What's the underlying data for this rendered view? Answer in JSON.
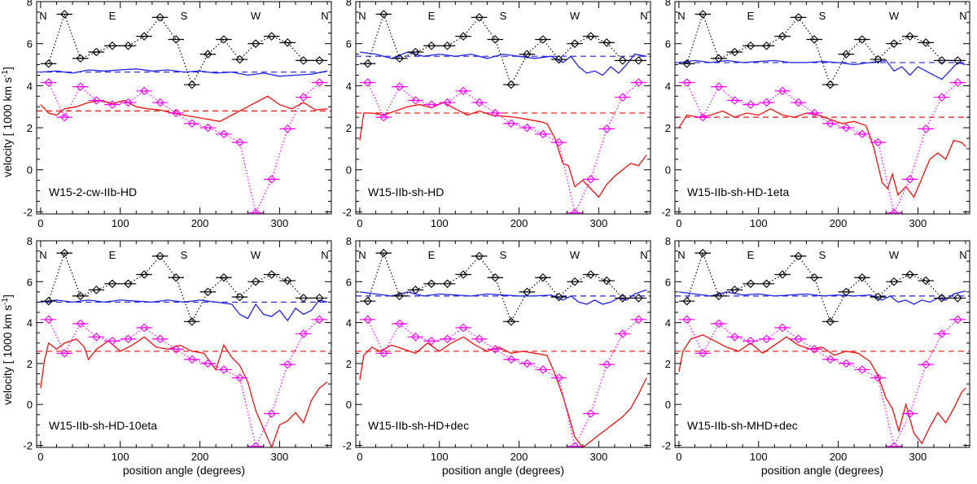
{
  "figure": {
    "ylabel_main": "velocity [ 1000 km s",
    "ylabel_sup": "-1",
    "ylabel_end": "]",
    "xlabel": "position angle (degrees)"
  },
  "colors": {
    "black": "#000000",
    "blue": "#1f22e6",
    "red": "#ee1111",
    "magenta": "#ff00ff"
  },
  "chart_data": {
    "type": "line",
    "xlim": [
      -5,
      365
    ],
    "ylim": [
      -2.1,
      8
    ],
    "xticks": [
      0,
      100,
      200,
      300
    ],
    "yticks": [
      -2,
      0,
      2,
      4,
      6,
      8
    ],
    "compass": [
      {
        "label": "N",
        "x": 0
      },
      {
        "label": "E",
        "x": 90
      },
      {
        "label": "S",
        "x": 180
      },
      {
        "label": "W",
        "x": 270
      },
      {
        "label": "N",
        "x": 360
      }
    ],
    "obs_black": {
      "name": "observed (black)",
      "x": [
        10,
        30,
        50,
        70,
        90,
        110,
        130,
        150,
        170,
        190,
        210,
        230,
        250,
        270,
        290,
        310,
        330,
        350
      ],
      "y": [
        5.05,
        7.4,
        5.3,
        5.6,
        5.9,
        5.9,
        6.35,
        7.25,
        6.2,
        4.05,
        5.5,
        6.2,
        5.25,
        6.0,
        6.35,
        6.05,
        5.2,
        5.2
      ],
      "xerr": 10
    },
    "obs_magenta": {
      "name": "observed (magenta)",
      "x": [
        10,
        30,
        50,
        70,
        90,
        110,
        130,
        150,
        170,
        190,
        210,
        230,
        250,
        270,
        290,
        310,
        330,
        350
      ],
      "y": [
        4.15,
        2.5,
        3.95,
        3.3,
        3.1,
        3.2,
        3.75,
        3.2,
        2.7,
        2.2,
        2.0,
        1.7,
        1.3,
        -2.05,
        -0.45,
        1.95,
        3.45,
        4.15
      ],
      "xerr": 10
    },
    "panels": [
      {
        "title": "W15-2-cw-IIb-HD",
        "blue_mean": 4.65,
        "red_mean": 2.8,
        "blue": {
          "x": [
            0,
            20,
            40,
            60,
            80,
            100,
            120,
            140,
            160,
            180,
            200,
            220,
            240,
            260,
            280,
            300,
            320,
            340,
            360
          ],
          "y": [
            4.65,
            4.7,
            4.6,
            4.75,
            4.7,
            4.75,
            4.8,
            4.7,
            4.75,
            4.65,
            4.7,
            4.6,
            4.65,
            4.5,
            4.6,
            4.45,
            4.5,
            4.55,
            4.7
          ]
        },
        "red": {
          "x": [
            0,
            10,
            20,
            30,
            45,
            60,
            75,
            90,
            105,
            120,
            135,
            150,
            165,
            180,
            195,
            210,
            225,
            240,
            255,
            270,
            285,
            300,
            315,
            330,
            345,
            360
          ],
          "y": [
            3.1,
            2.7,
            2.6,
            2.9,
            3.0,
            3.2,
            3.3,
            3.15,
            3.3,
            3.0,
            2.9,
            2.85,
            2.7,
            2.6,
            2.5,
            2.4,
            2.3,
            2.6,
            2.9,
            3.2,
            3.5,
            3.1,
            2.9,
            3.2,
            2.85,
            2.9
          ]
        }
      },
      {
        "title": "W15-IIb-sh-HD",
        "blue_mean": 5.4,
        "red_mean": 2.7,
        "blue": {
          "x": [
            0,
            20,
            40,
            60,
            80,
            100,
            120,
            140,
            160,
            180,
            200,
            220,
            240,
            255,
            265,
            275,
            285,
            295,
            305,
            315,
            325,
            335,
            345,
            360
          ],
          "y": [
            5.6,
            5.5,
            5.3,
            5.6,
            5.4,
            5.5,
            5.4,
            5.5,
            5.3,
            5.5,
            5.4,
            5.3,
            5.4,
            5.1,
            5.4,
            4.9,
            4.6,
            4.7,
            4.5,
            4.9,
            4.6,
            5.0,
            5.5,
            5.4
          ]
        },
        "red": {
          "x": [
            0,
            5,
            15,
            30,
            45,
            60,
            75,
            90,
            105,
            120,
            135,
            150,
            165,
            180,
            195,
            210,
            225,
            235,
            245,
            255,
            262,
            270,
            280,
            290,
            300,
            310,
            320,
            330,
            340,
            350,
            360
          ],
          "y": [
            1.4,
            2.7,
            2.7,
            2.6,
            2.8,
            3.0,
            3.1,
            2.95,
            3.2,
            2.9,
            2.6,
            2.8,
            2.6,
            2.55,
            2.5,
            2.4,
            2.3,
            2.2,
            1.5,
            0.3,
            0.2,
            -0.8,
            -0.5,
            -0.9,
            -1.3,
            -0.7,
            -0.3,
            0.0,
            0.3,
            0.2,
            0.7
          ]
        }
      },
      {
        "title": "W15-IIb-sh-HD-1eta",
        "blue_mean": 5.1,
        "red_mean": 2.5,
        "blue": {
          "x": [
            0,
            20,
            40,
            60,
            80,
            100,
            120,
            140,
            160,
            180,
            200,
            220,
            240,
            260,
            270,
            280,
            290,
            300,
            310,
            320,
            330,
            340,
            350,
            360
          ],
          "y": [
            5.1,
            5.2,
            5.1,
            5.2,
            5.1,
            5.15,
            5.2,
            5.1,
            5.1,
            5.15,
            5.1,
            5.0,
            5.1,
            5.2,
            4.7,
            4.9,
            4.5,
            4.9,
            4.7,
            4.5,
            4.3,
            4.7,
            5.1,
            5.0
          ]
        },
        "red": {
          "x": [
            0,
            10,
            25,
            40,
            55,
            70,
            85,
            100,
            115,
            130,
            145,
            160,
            175,
            190,
            205,
            220,
            235,
            245,
            255,
            262,
            268,
            275,
            285,
            295,
            305,
            315,
            325,
            335,
            345,
            355,
            360
          ],
          "y": [
            2.0,
            2.6,
            2.5,
            2.6,
            2.8,
            2.5,
            2.7,
            2.6,
            2.9,
            2.6,
            2.5,
            2.7,
            2.6,
            2.4,
            2.2,
            2.3,
            2.1,
            1.0,
            -0.6,
            -0.9,
            -0.2,
            -1.2,
            -0.8,
            -1.3,
            -0.4,
            0.5,
            0.8,
            0.5,
            1.4,
            1.3,
            1.1
          ]
        }
      },
      {
        "title": "W15-IIb-sh-HD-10eta",
        "blue_mean": 5.0,
        "red_mean": 2.6,
        "blue": {
          "x": [
            0,
            20,
            40,
            60,
            80,
            100,
            120,
            140,
            160,
            180,
            200,
            220,
            240,
            250,
            260,
            270,
            280,
            290,
            300,
            310,
            320,
            330,
            340,
            350,
            360
          ],
          "y": [
            5.0,
            5.1,
            5.0,
            5.1,
            5.0,
            5.1,
            5.05,
            5.0,
            5.1,
            5.0,
            5.1,
            5.0,
            4.9,
            4.4,
            4.2,
            4.9,
            4.4,
            4.3,
            4.6,
            4.1,
            4.7,
            4.4,
            4.6,
            5.1,
            5.0
          ]
        },
        "red": {
          "x": [
            0,
            5,
            10,
            20,
            30,
            45,
            55,
            60,
            70,
            85,
            100,
            115,
            130,
            145,
            160,
            175,
            190,
            205,
            220,
            230,
            240,
            250,
            260,
            270,
            280,
            290,
            300,
            310,
            320,
            330,
            340,
            350,
            360
          ],
          "y": [
            0.8,
            2.2,
            3.0,
            2.7,
            3.0,
            3.2,
            2.8,
            2.2,
            2.7,
            3.1,
            2.6,
            2.9,
            3.3,
            2.8,
            2.7,
            2.9,
            2.6,
            2.5,
            1.7,
            2.9,
            2.3,
            1.9,
            1.1,
            -0.3,
            -1.2,
            -2.1,
            -1.0,
            -0.8,
            -0.4,
            -0.9,
            0.2,
            0.8,
            1.1
          ]
        }
      },
      {
        "title": "W15-IIb-sh-HD+dec",
        "blue_mean": 5.3,
        "red_mean": 2.6,
        "blue": {
          "x": [
            0,
            20,
            40,
            60,
            80,
            100,
            120,
            140,
            160,
            180,
            200,
            220,
            240,
            255,
            265,
            275,
            285,
            295,
            305,
            315,
            325,
            335,
            345,
            360
          ],
          "y": [
            5.5,
            5.4,
            5.3,
            5.5,
            5.3,
            5.4,
            5.35,
            5.3,
            5.4,
            5.35,
            5.3,
            5.3,
            5.35,
            5.1,
            5.3,
            5.0,
            4.9,
            5.1,
            4.9,
            5.0,
            5.2,
            5.1,
            5.4,
            5.6
          ]
        },
        "red": {
          "x": [
            0,
            5,
            15,
            25,
            40,
            55,
            70,
            85,
            100,
            115,
            130,
            145,
            160,
            175,
            190,
            205,
            220,
            235,
            245,
            255,
            262,
            270,
            280,
            290,
            300,
            310,
            320,
            330,
            340,
            350,
            360
          ],
          "y": [
            1.2,
            2.4,
            2.8,
            2.6,
            2.9,
            2.7,
            2.5,
            3.0,
            2.6,
            3.0,
            3.3,
            2.9,
            2.6,
            2.8,
            2.5,
            2.6,
            2.5,
            2.4,
            1.5,
            0.4,
            -0.5,
            -1.6,
            -2.1,
            -1.8,
            -1.5,
            -1.2,
            -0.9,
            -0.6,
            -0.2,
            0.5,
            1.3
          ]
        }
      },
      {
        "title": "W15-IIb-sh-MHD+dec",
        "blue_mean": 5.3,
        "red_mean": 2.6,
        "blue": {
          "x": [
            0,
            20,
            40,
            60,
            80,
            100,
            120,
            140,
            160,
            180,
            200,
            220,
            240,
            255,
            265,
            275,
            285,
            295,
            305,
            315,
            325,
            335,
            345,
            360
          ],
          "y": [
            5.5,
            5.4,
            5.3,
            5.5,
            5.35,
            5.4,
            5.3,
            5.35,
            5.4,
            5.3,
            5.35,
            5.3,
            5.35,
            5.1,
            5.3,
            5.0,
            5.1,
            4.9,
            5.1,
            5.0,
            5.2,
            5.1,
            5.4,
            5.55
          ]
        },
        "red": {
          "x": [
            0,
            5,
            15,
            30,
            45,
            60,
            75,
            90,
            105,
            120,
            135,
            150,
            165,
            180,
            195,
            210,
            225,
            240,
            250,
            260,
            268,
            276,
            285,
            295,
            305,
            315,
            325,
            335,
            345,
            355,
            360
          ],
          "y": [
            1.6,
            2.6,
            3.2,
            3.4,
            3.1,
            2.8,
            2.6,
            3.0,
            2.5,
            2.9,
            3.3,
            2.9,
            2.7,
            2.8,
            2.4,
            2.6,
            2.5,
            2.1,
            1.4,
            0.3,
            -0.2,
            -1.3,
            0.0,
            -1.4,
            -1.9,
            -1.1,
            -0.4,
            -0.9,
            -0.2,
            0.6,
            0.8
          ]
        }
      }
    ]
  }
}
